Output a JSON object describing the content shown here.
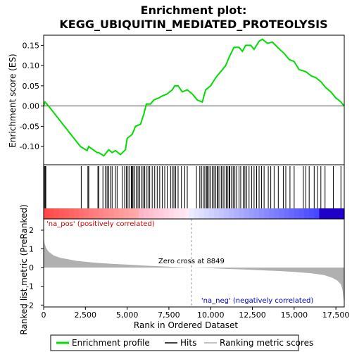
{
  "chart_data": {
    "type": "line",
    "title_line1": "Enrichment plot:",
    "title_line2": "KEGG_UBIQUITIN_MEDIATED_PROTEOLYSIS",
    "xlabel": "Rank in Ordered Dataset",
    "ylabel_top": "Enrichment score (ES)",
    "ylabel_bottom": "Ranked list metric (PreRanked)",
    "xlim": [
      0,
      18000
    ],
    "es_ylim": [
      -0.145,
      0.175
    ],
    "metric_ylim": [
      -2.1,
      2.6
    ],
    "x_ticks": [
      0,
      2500,
      5000,
      7500,
      10000,
      12500,
      15000,
      17500
    ],
    "x_tick_labels": [
      "0",
      "2,500",
      "5,000",
      "7,500",
      "10,000",
      "12,500",
      "15,000",
      "17,500"
    ],
    "es_ticks": [
      -0.1,
      -0.05,
      0.0,
      0.05,
      0.1,
      0.15
    ],
    "es_tick_labels": [
      "-0.10",
      "-0.05",
      "0.00",
      "0.05",
      "0.10",
      "0.15"
    ],
    "metric_ticks": [
      -2,
      -1,
      0,
      1,
      2
    ],
    "metric_tick_labels": [
      "-2",
      "-1",
      "0",
      "1",
      "2"
    ],
    "zero_cross": 8849,
    "zero_cross_label": "Zero cross at 8849",
    "pos_label": "'na_pos' (positively correlated)",
    "neg_label": "'na_neg' (negatively correlated)",
    "legend": [
      "Enrichment profile",
      "Hits",
      "Ranking metric scores"
    ],
    "colors": {
      "es_line": "#00dd00",
      "hits": "#000000",
      "metric": "#b0b0b0",
      "pos_label": "#cc0000",
      "neg_label": "#0000cc"
    },
    "es_curve": [
      [
        0,
        0.0
      ],
      [
        80,
        0.01
      ],
      [
        200,
        0.005
      ],
      [
        2200,
        -0.1
      ],
      [
        2600,
        -0.11
      ],
      [
        2700,
        -0.1
      ],
      [
        3200,
        -0.115
      ],
      [
        3300,
        -0.115
      ],
      [
        3600,
        -0.123
      ],
      [
        3900,
        -0.108
      ],
      [
        4100,
        -0.115
      ],
      [
        4300,
        -0.11
      ],
      [
        4600,
        -0.12
      ],
      [
        4900,
        -0.108
      ],
      [
        5000,
        -0.08
      ],
      [
        5300,
        -0.07
      ],
      [
        5500,
        -0.05
      ],
      [
        5800,
        -0.045
      ],
      [
        6000,
        -0.02
      ],
      [
        6150,
        0.005
      ],
      [
        6400,
        0.005
      ],
      [
        6600,
        0.015
      ],
      [
        6900,
        0.02
      ],
      [
        7100,
        0.025
      ],
      [
        7400,
        0.03
      ],
      [
        7700,
        0.04
      ],
      [
        7850,
        0.05
      ],
      [
        8050,
        0.05
      ],
      [
        8300,
        0.035
      ],
      [
        8600,
        0.04
      ],
      [
        8900,
        0.03
      ],
      [
        9200,
        0.015
      ],
      [
        9500,
        0.01
      ],
      [
        9700,
        0.04
      ],
      [
        10000,
        0.05
      ],
      [
        10300,
        0.07
      ],
      [
        10600,
        0.085
      ],
      [
        10900,
        0.1
      ],
      [
        11100,
        0.12
      ],
      [
        11400,
        0.145
      ],
      [
        11700,
        0.145
      ],
      [
        11900,
        0.135
      ],
      [
        12100,
        0.15
      ],
      [
        12400,
        0.15
      ],
      [
        12600,
        0.14
      ],
      [
        12900,
        0.16
      ],
      [
        13100,
        0.165
      ],
      [
        13400,
        0.155
      ],
      [
        13700,
        0.158
      ],
      [
        14000,
        0.145
      ],
      [
        14400,
        0.13
      ],
      [
        14700,
        0.115
      ],
      [
        15000,
        0.11
      ],
      [
        15300,
        0.09
      ],
      [
        15700,
        0.085
      ],
      [
        16000,
        0.075
      ],
      [
        16300,
        0.07
      ],
      [
        16600,
        0.06
      ],
      [
        16900,
        0.045
      ],
      [
        17200,
        0.035
      ],
      [
        17500,
        0.02
      ],
      [
        17800,
        0.01
      ],
      [
        18000,
        0.0
      ]
    ],
    "hit_positions": [
      40,
      90,
      130,
      2250,
      2650,
      2700,
      3250,
      3300,
      3550,
      3700,
      3800,
      3900,
      4000,
      4100,
      4300,
      4400,
      4700,
      4850,
      4950,
      5050,
      5150,
      5250,
      5300,
      5350,
      5450,
      5550,
      5650,
      5750,
      5850,
      5950,
      6050,
      6150,
      6250,
      6350,
      6500,
      6650,
      6800,
      6950,
      7100,
      7250,
      7400,
      7600,
      7700,
      7800,
      7900,
      8050,
      8250,
      8450,
      8600,
      9150,
      9350,
      9450,
      9550,
      9650,
      9750,
      9800,
      9900,
      10000,
      10100,
      10200,
      10300,
      10400,
      10450,
      10550,
      10650,
      10750,
      10850,
      10950,
      11000,
      11100,
      11150,
      11250,
      11350,
      11450,
      11550,
      11700,
      11800,
      11950,
      12050,
      12150,
      12300,
      12450,
      12600,
      12750,
      12900,
      13050,
      13200,
      13450,
      13600,
      13800,
      14050,
      14350,
      14500,
      14750,
      15000,
      15550,
      15700,
      15900,
      16200,
      16400,
      16600,
      16850,
      17350,
      17800
    ],
    "metric_curve": [
      [
        0,
        1.6
      ],
      [
        50,
        1.3
      ],
      [
        150,
        1.05
      ],
      [
        300,
        0.85
      ],
      [
        600,
        0.65
      ],
      [
        1000,
        0.52
      ],
      [
        2000,
        0.36
      ],
      [
        3000,
        0.27
      ],
      [
        4000,
        0.21
      ],
      [
        5000,
        0.16
      ],
      [
        6000,
        0.11
      ],
      [
        7000,
        0.07
      ],
      [
        8000,
        0.03
      ],
      [
        8849,
        0.0
      ],
      [
        10000,
        -0.03
      ],
      [
        11000,
        -0.07
      ],
      [
        12000,
        -0.1
      ],
      [
        13000,
        -0.14
      ],
      [
        14000,
        -0.18
      ],
      [
        15000,
        -0.23
      ],
      [
        16000,
        -0.3
      ],
      [
        16800,
        -0.4
      ],
      [
        17300,
        -0.55
      ],
      [
        17600,
        -0.7
      ],
      [
        17800,
        -0.9
      ],
      [
        17900,
        -1.2
      ],
      [
        17950,
        -1.6
      ],
      [
        18000,
        -1.9
      ]
    ]
  }
}
